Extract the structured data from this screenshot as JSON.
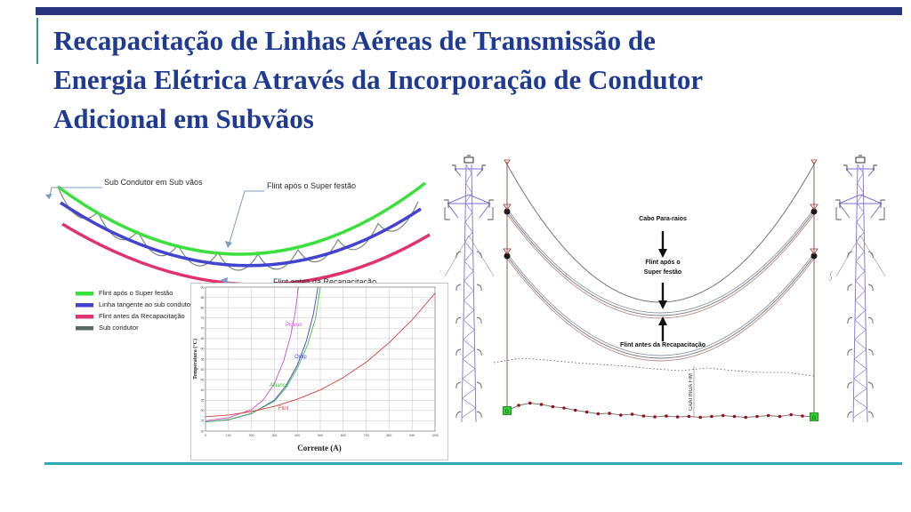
{
  "slide": {
    "title_lines": [
      "Recapacitação de Linhas Aéreas de Transmissão de",
      "Energia Elétrica Através da Incorporação de Condutor",
      "Adicional em Subvãos"
    ],
    "title_color": "#1F3A93",
    "top_bar_color": "#26357E",
    "accent_teal": "#2FA9B8"
  },
  "sag_diagram": {
    "label_sub_condutor": "Sub Condutor em Sub vãos",
    "label_flint_apos": "Flint após o Super festão",
    "label_flint_antes": "Flint antes da Recapacitação",
    "colors": {
      "flint_apos": "#3CE03C",
      "linha_tangente": "#4343CF",
      "flint_antes": "#E0336E",
      "sub_condutor": "#7A8A7A"
    }
  },
  "legend": {
    "items": [
      {
        "label": "Flint após o Super festão",
        "color": "#3CE03C"
      },
      {
        "label": "Linha tangente ao sub condutor",
        "color": "#4343CF"
      },
      {
        "label": "Flint antes da Recapacitação",
        "color": "#E0336E"
      },
      {
        "label": "Sub condutor",
        "color": "#556B5F"
      }
    ]
  },
  "chart_data": {
    "type": "line",
    "title": "",
    "xlabel": "Corrente (A)",
    "ylabel": "Temperatura (°C)",
    "xlim": [
      0,
      1000
    ],
    "ylim": [
      20,
      90
    ],
    "grid": true,
    "legend_position": "none",
    "x_ticks": [
      0,
      100,
      200,
      300,
      400,
      500,
      600,
      700,
      800,
      900,
      1000
    ],
    "y_ticks": [
      20,
      25,
      30,
      35,
      40,
      45,
      50,
      55,
      60,
      65,
      70,
      75,
      80,
      85,
      90
    ],
    "series": [
      {
        "name": "Pigeon",
        "color": "#D24FD2",
        "points": [
          [
            0,
            25
          ],
          [
            100,
            26.5
          ],
          [
            200,
            30.5
          ],
          [
            250,
            35
          ],
          [
            300,
            43
          ],
          [
            340,
            54
          ],
          [
            370,
            66
          ],
          [
            390,
            77
          ],
          [
            405,
            90
          ]
        ]
      },
      {
        "name": "Oxlip",
        "color": "#4444CC",
        "points": [
          [
            0,
            24.5
          ],
          [
            100,
            25.5
          ],
          [
            200,
            28.5
          ],
          [
            300,
            35
          ],
          [
            350,
            42
          ],
          [
            400,
            52
          ],
          [
            440,
            64
          ],
          [
            470,
            77
          ],
          [
            490,
            90
          ]
        ]
      },
      {
        "name": "Alliance",
        "color": "#3FBF3F",
        "points": [
          [
            0,
            24.5
          ],
          [
            100,
            25.6
          ],
          [
            200,
            28.6
          ],
          [
            300,
            34.5
          ],
          [
            350,
            41
          ],
          [
            400,
            50.5
          ],
          [
            445,
            62
          ],
          [
            480,
            75
          ],
          [
            500,
            90
          ]
        ]
      },
      {
        "name": "Flint",
        "color": "#D94040",
        "points": [
          [
            0,
            27
          ],
          [
            100,
            27.8
          ],
          [
            200,
            29.5
          ],
          [
            300,
            32
          ],
          [
            400,
            35.5
          ],
          [
            500,
            40
          ],
          [
            600,
            46
          ],
          [
            700,
            53.5
          ],
          [
            800,
            63
          ],
          [
            900,
            74
          ],
          [
            1000,
            87
          ]
        ]
      }
    ]
  },
  "span_diagram": {
    "label_cabo_para_raios": "Cabo Para-raios",
    "label_flint_apos_line1": "Flint após o",
    "label_flint_apos_line2": "Super festão",
    "label_flint_antes": "Flint antes da Recapacitação",
    "label_caatinga": "CAATINGA FIM",
    "ground_marker": "G"
  }
}
